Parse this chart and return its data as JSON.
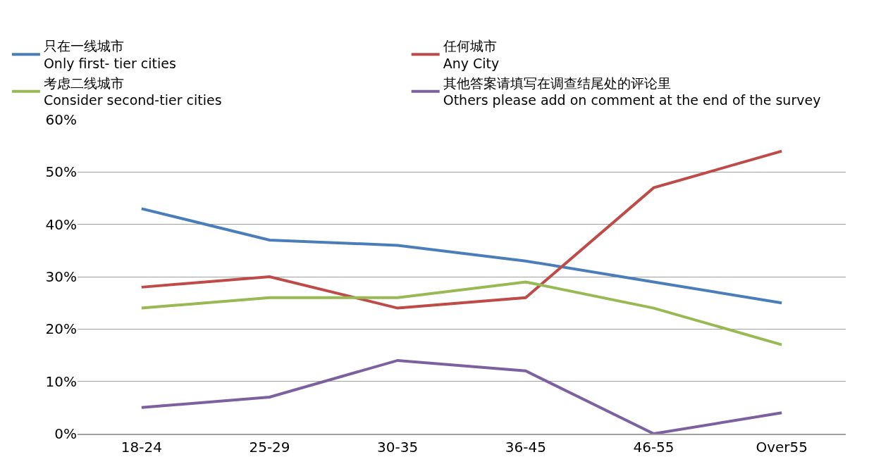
{
  "chart_data": {
    "type": "line",
    "categories": [
      "18-24",
      "25-29",
      "30-35",
      "36-45",
      "46-55",
      "Over55"
    ],
    "series": [
      {
        "name": "只在一线城市\nOnly first- tier cities",
        "color": "#4a7ebb",
        "values": [
          0.43,
          0.37,
          0.36,
          0.33,
          0.29,
          0.25
        ]
      },
      {
        "name": "任何城市\nAny City",
        "color": "#be4b48",
        "values": [
          0.28,
          0.3,
          0.24,
          0.26,
          0.47,
          0.54
        ]
      },
      {
        "name": "考虑二线城市\nConsider second-tier cities",
        "color": "#98b954",
        "values": [
          0.24,
          0.26,
          0.26,
          0.29,
          0.24,
          0.17
        ]
      },
      {
        "name": "其他答案请填写在调查结尾处的评论里\nOthers please add on comment at the end of the survey",
        "color": "#7d60a0",
        "values": [
          0.05,
          0.07,
          0.14,
          0.12,
          0.0,
          0.04
        ]
      }
    ],
    "ylim": [
      0,
      0.6
    ],
    "yticks": [
      {
        "value": 0,
        "label": "0%"
      },
      {
        "value": 0.1,
        "label": "10%"
      },
      {
        "value": 0.2,
        "label": "20%"
      },
      {
        "value": 0.3,
        "label": "30%"
      },
      {
        "value": 0.4,
        "label": "40%"
      },
      {
        "value": 0.5,
        "label": "50%"
      },
      {
        "value": 0.6,
        "label": "60%"
      }
    ],
    "grid": "y",
    "legend": "top",
    "marker": "none",
    "line_style": "solid"
  }
}
